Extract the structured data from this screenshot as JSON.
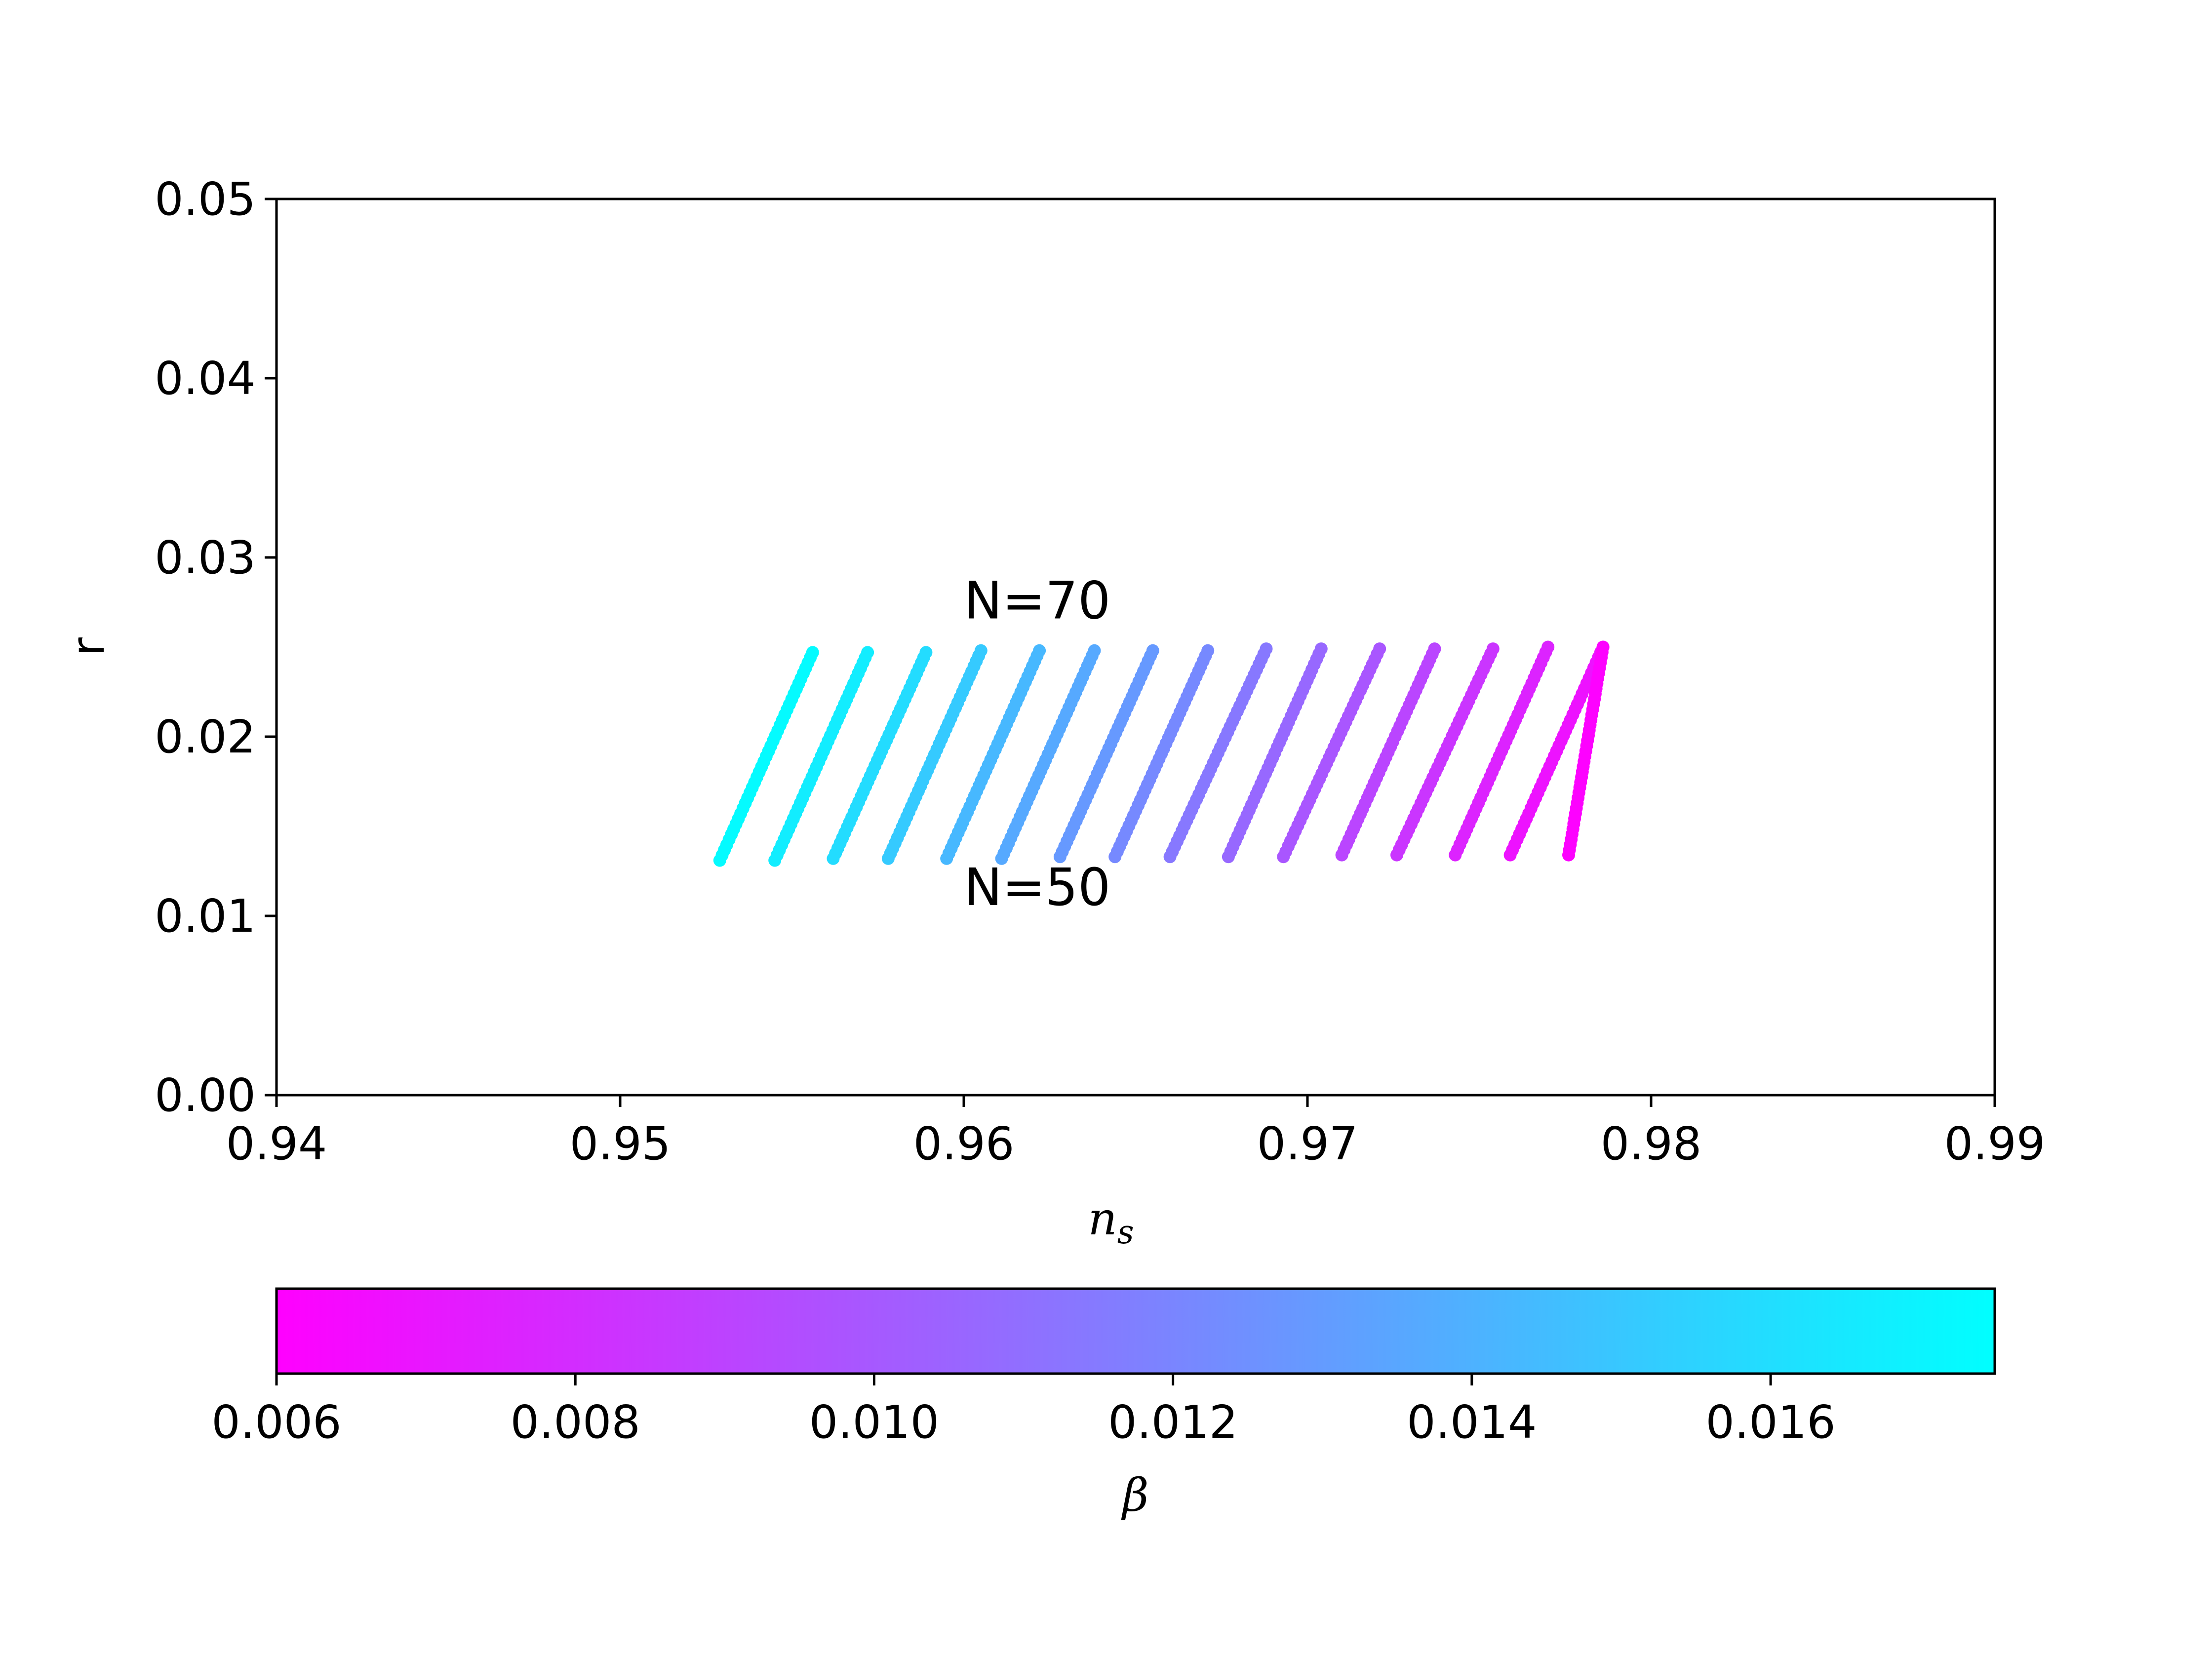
{
  "chart_data": {
    "type": "scatter",
    "xlabel": "n",
    "xlabel_subscript": "s",
    "ylabel": "r",
    "xlim": [
      0.94,
      0.99
    ],
    "ylim": [
      0.0,
      0.05
    ],
    "x_ticks": [
      "0.94",
      "0.95",
      "0.96",
      "0.97",
      "0.98",
      "0.99"
    ],
    "y_ticks": [
      "0.00",
      "0.01",
      "0.02",
      "0.03",
      "0.04",
      "0.05"
    ],
    "grid": false,
    "annotations": [
      {
        "text": "N=70",
        "x": 0.96,
        "y": 0.0266
      },
      {
        "text": "N=50",
        "x": 0.96,
        "y": 0.0106
      }
    ],
    "colorbar": {
      "label": "β",
      "orientation": "horizontal",
      "location": "bottom",
      "colormap": "cool (reversed)",
      "range": [
        0.006,
        0.0175
      ],
      "ticks": [
        "0.006",
        "0.008",
        "0.010",
        "0.012",
        "0.014",
        "0.016"
      ],
      "low_color": "#ff00ff",
      "high_color": "#00ffff"
    },
    "series_note": "16 parametric curves, each from N=50 to N=70 (41 points per curve), colored by beta",
    "n_points_per_curve": 41,
    "curves": [
      {
        "beta": 0.0173,
        "ns_start": 0.9529,
        "r_start": 0.0131,
        "ns_end": 0.9556,
        "r_end": 0.0247
      },
      {
        "beta": 0.0167,
        "ns_start": 0.9545,
        "r_start": 0.0131,
        "ns_end": 0.9572,
        "r_end": 0.0247
      },
      {
        "beta": 0.0159,
        "ns_start": 0.9562,
        "r_start": 0.0132,
        "ns_end": 0.9589,
        "r_end": 0.0247
      },
      {
        "beta": 0.0151,
        "ns_start": 0.9578,
        "r_start": 0.0132,
        "ns_end": 0.9605,
        "r_end": 0.0248
      },
      {
        "beta": 0.0143,
        "ns_start": 0.9595,
        "r_start": 0.0132,
        "ns_end": 0.9622,
        "r_end": 0.0248
      },
      {
        "beta": 0.0136,
        "ns_start": 0.9611,
        "r_start": 0.0132,
        "ns_end": 0.9638,
        "r_end": 0.0248
      },
      {
        "beta": 0.0129,
        "ns_start": 0.9628,
        "r_start": 0.0133,
        "ns_end": 0.9655,
        "r_end": 0.0248
      },
      {
        "beta": 0.0122,
        "ns_start": 0.9644,
        "r_start": 0.0133,
        "ns_end": 0.9671,
        "r_end": 0.0248
      },
      {
        "beta": 0.0114,
        "ns_start": 0.966,
        "r_start": 0.0133,
        "ns_end": 0.9688,
        "r_end": 0.0249
      },
      {
        "beta": 0.0107,
        "ns_start": 0.9677,
        "r_start": 0.0133,
        "ns_end": 0.9704,
        "r_end": 0.0249
      },
      {
        "beta": 0.0099,
        "ns_start": 0.9693,
        "r_start": 0.0133,
        "ns_end": 0.9721,
        "r_end": 0.0249
      },
      {
        "beta": 0.0091,
        "ns_start": 0.971,
        "r_start": 0.0134,
        "ns_end": 0.9737,
        "r_end": 0.0249
      },
      {
        "beta": 0.0084,
        "ns_start": 0.9726,
        "r_start": 0.0134,
        "ns_end": 0.9754,
        "r_end": 0.0249
      },
      {
        "beta": 0.0076,
        "ns_start": 0.9743,
        "r_start": 0.0134,
        "ns_end": 0.977,
        "r_end": 0.025
      },
      {
        "beta": 0.0068,
        "ns_start": 0.9759,
        "r_start": 0.0134,
        "ns_end": 0.9786,
        "r_end": 0.025
      },
      {
        "beta": 0.0061,
        "ns_start": 0.9776,
        "r_start": 0.0134,
        "ns_end": 0.9786,
        "r_end": 0.025
      }
    ]
  }
}
